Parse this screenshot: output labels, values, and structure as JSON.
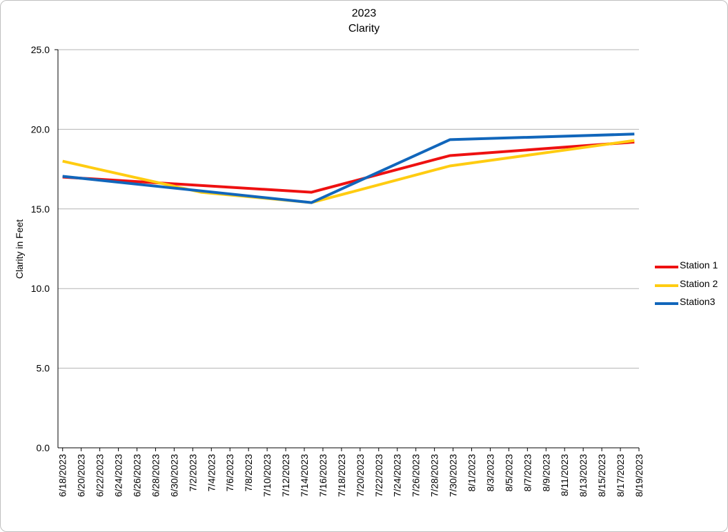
{
  "chart_data": {
    "type": "line",
    "title": "2023",
    "subtitle": "Clarity",
    "xlabel": "",
    "ylabel": "Clarity in Feet",
    "ylim": [
      0,
      25
    ],
    "yticks": [
      "0.0",
      "5.0",
      "10.0",
      "15.0",
      "20.0",
      "25.0"
    ],
    "grid": true,
    "legend": "right",
    "categories": [
      "6/18/2023",
      "6/20/2023",
      "6/22/2023",
      "6/24/2023",
      "6/26/2023",
      "6/28/2023",
      "6/30/2023",
      "7/2/2023",
      "7/4/2023",
      "7/6/2023",
      "7/8/2023",
      "7/10/2023",
      "7/12/2023",
      "7/14/2023",
      "7/16/2023",
      "7/18/2023",
      "7/20/2023",
      "7/22/2023",
      "7/24/2023",
      "7/26/2023",
      "7/28/2023",
      "7/30/2023",
      "8/1/2023",
      "8/3/2023",
      "8/5/2023",
      "8/7/2023",
      "8/9/2023",
      "8/11/2023",
      "8/13/2023",
      "8/15/2023",
      "8/17/2023",
      "8/19/2023"
    ],
    "series": [
      {
        "name": "Station 1",
        "color": "#ee1111",
        "points": [
          {
            "x": "6/18/2023",
            "y": 17.0
          },
          {
            "x": "7/15/2023",
            "y": 16.05
          },
          {
            "x": "7/30/2023",
            "y": 18.35
          },
          {
            "x": "8/19/2023",
            "y": 19.2
          }
        ]
      },
      {
        "name": "Station 2",
        "color": "#ffcc11",
        "points": [
          {
            "x": "6/18/2023",
            "y": 18.0
          },
          {
            "x": "7/3/2023",
            "y": 16.05
          },
          {
            "x": "7/15/2023",
            "y": 15.4
          },
          {
            "x": "7/30/2023",
            "y": 17.7
          },
          {
            "x": "8/19/2023",
            "y": 19.3
          }
        ]
      },
      {
        "name": "Station3",
        "color": "#1166bb",
        "points": [
          {
            "x": "6/18/2023",
            "y": 17.05
          },
          {
            "x": "7/15/2023",
            "y": 15.4
          },
          {
            "x": "7/30/2023",
            "y": 19.35
          },
          {
            "x": "8/19/2023",
            "y": 19.7
          }
        ]
      }
    ]
  }
}
